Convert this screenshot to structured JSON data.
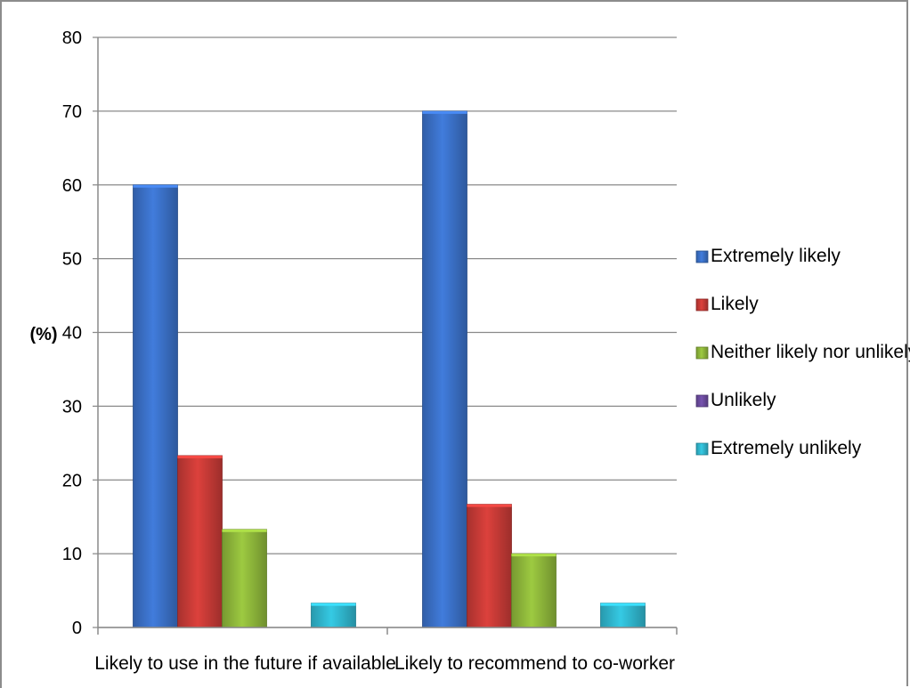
{
  "chart_data": {
    "type": "bar",
    "title": "",
    "xlabel": "",
    "ylabel": "(%)",
    "ylim": [
      0,
      80
    ],
    "yticks": [
      0,
      10,
      20,
      30,
      40,
      50,
      60,
      70,
      80
    ],
    "grid": true,
    "legend_position": "right",
    "categories": [
      "Likely to use in the future if available",
      "Likely to recommend to co-worker"
    ],
    "series": [
      {
        "name": "Extremely likely",
        "color": "#3a6fc4",
        "values": [
          60,
          70
        ]
      },
      {
        "name": "Likely",
        "color": "#c43a36",
        "values": [
          23.3,
          16.7
        ]
      },
      {
        "name": "Neither likely nor unlikely",
        "color": "#8cb43a",
        "values": [
          13.3,
          10
        ]
      },
      {
        "name": "Unlikely",
        "color": "#6a4a9c",
        "values": [
          0,
          0
        ]
      },
      {
        "name": "Extremely unlikely",
        "color": "#2fb4cc",
        "values": [
          3.3,
          3.3
        ]
      }
    ]
  }
}
